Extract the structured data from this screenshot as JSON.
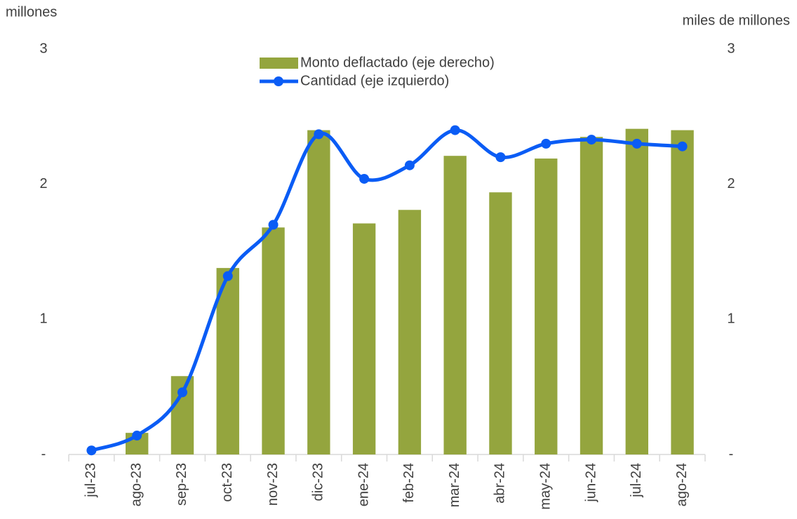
{
  "chart_data": {
    "type": "combo",
    "y_label": "millones",
    "y2_label": "miles de millones",
    "categories": [
      "jul-23",
      "ago-23",
      "sep-23",
      "oct-23",
      "nov-23",
      "dic-23",
      "ene-24",
      "feb-24",
      "mar-24",
      "abr-24",
      "may-24",
      "jun-24",
      "jul-24",
      "ago-24"
    ],
    "series": [
      {
        "name": "Monto deflactado (eje derecho)",
        "type": "bar",
        "axis": "y2",
        "color": "#94a53e",
        "values": [
          0,
          0.16,
          0.58,
          1.38,
          1.68,
          2.4,
          1.71,
          1.81,
          2.21,
          1.94,
          2.19,
          2.35,
          2.41,
          2.4
        ]
      },
      {
        "name": "Cantidad (eje izquierdo)",
        "type": "line",
        "color": "#0a5cf5",
        "values": [
          0.03,
          0.14,
          0.46,
          1.32,
          1.7,
          2.37,
          2.04,
          2.14,
          2.4,
          2.2,
          2.3,
          2.33,
          2.3,
          2.28
        ]
      }
    ],
    "ylim": [
      0,
      3
    ],
    "yticks": [
      {
        "value": 0,
        "label": "-"
      },
      1,
      2,
      3
    ],
    "y2lim": [
      0,
      3
    ],
    "y2ticks": [
      {
        "value": 0,
        "label": "-"
      },
      1,
      2,
      3
    ],
    "legend": "top"
  }
}
